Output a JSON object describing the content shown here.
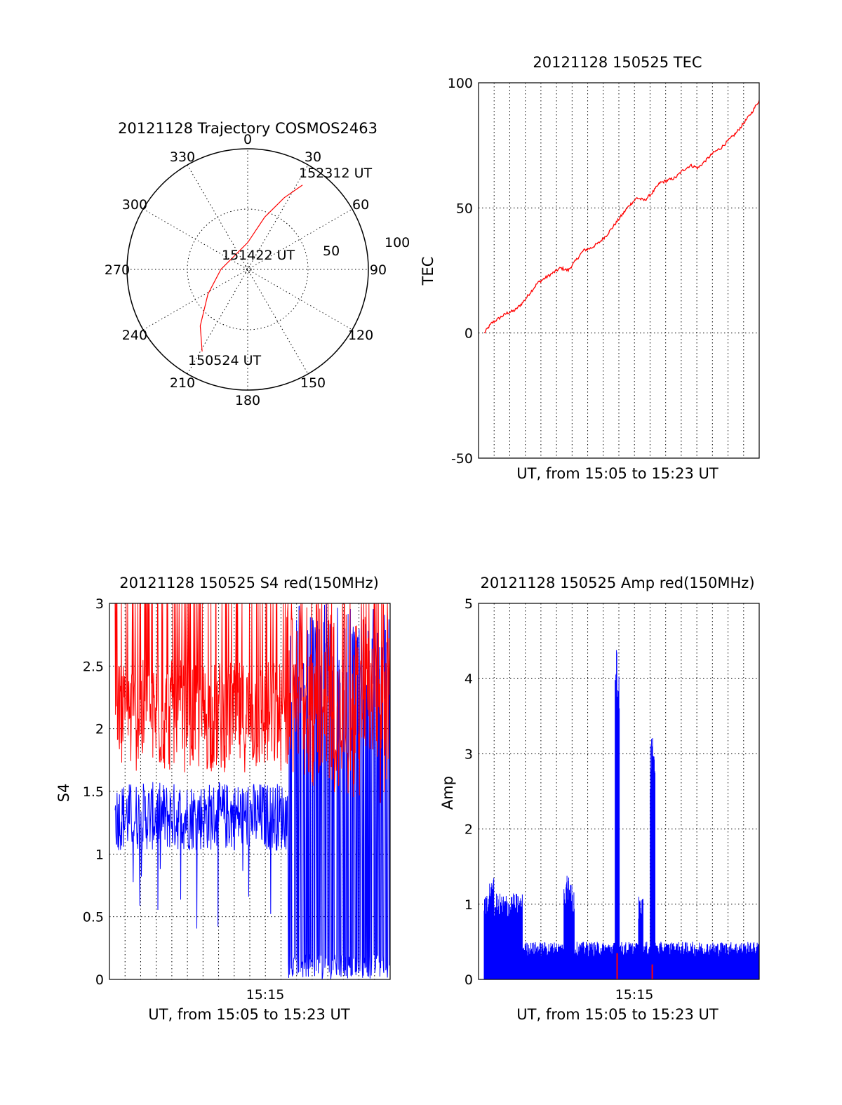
{
  "colors": {
    "red": "#ff0000",
    "blue": "#0000ff",
    "axis": "#000000",
    "background": "#ffffff"
  },
  "chart_data": [
    {
      "type": "polar",
      "title": "20121128 Trajectory COSMOS2463",
      "azimuth_labels": [
        "0",
        "30",
        "60",
        "90",
        "120",
        "150",
        "180",
        "210",
        "240",
        "270",
        "300",
        "330"
      ],
      "ring_labels": [
        "50",
        "100"
      ],
      "series": [
        {
          "color": "red",
          "points": [
            {
              "az": 209,
              "zenith": 70
            },
            {
              "az": 220,
              "zenith": 55
            },
            {
              "az": 238,
              "zenith": 35
            },
            {
              "az": 270,
              "zenith": 20
            },
            {
              "az": 0,
              "zenith": 20
            },
            {
              "az": 18,
              "zenith": 41
            },
            {
              "az": 27,
              "zenith": 60
            },
            {
              "az": 33,
              "zenith": 75
            }
          ]
        }
      ],
      "annotations": [
        {
          "text": "152312 UT",
          "az": 33,
          "zenith": 75
        },
        {
          "text": "151422 UT",
          "az": 0,
          "zenith": 0
        },
        {
          "text": "150524 UT",
          "az": 209,
          "zenith": 70
        }
      ]
    },
    {
      "type": "line",
      "title": "20121128 150525 TEC",
      "xlabel": "UT, from 15:05 to 15:23 UT",
      "ylabel": "TEC",
      "ylim": [
        -50,
        100
      ],
      "xlim_minutes": [
        0,
        18
      ],
      "y_ticks": [
        "-50",
        "0",
        "50",
        "100"
      ],
      "grid": true,
      "series": [
        {
          "color": "red",
          "x_minutes": [
            0,
            0.5,
            1,
            1.5,
            2,
            2.5,
            3,
            3.5,
            4,
            4.5,
            5,
            5.5,
            6,
            6.5,
            7,
            7.5,
            8,
            8.5,
            9,
            9.5,
            10,
            10.5,
            11,
            11.5,
            12,
            12.5,
            13,
            13.5,
            14,
            14.5,
            15,
            15.5,
            16,
            16.5,
            17,
            17.5,
            18
          ],
          "y": [
            0,
            4,
            6,
            8,
            9,
            12,
            16,
            20,
            22,
            24,
            26,
            25,
            29,
            33,
            34,
            36,
            39,
            43,
            47,
            51,
            54,
            53,
            56,
            60,
            61,
            62,
            65,
            67,
            66,
            69,
            72,
            74,
            77,
            80,
            84,
            88,
            93
          ]
        }
      ]
    },
    {
      "type": "line",
      "title": "20121128 150525 S4 red(150MHz)",
      "xlabel": "UT, from 15:05 to 15:23 UT",
      "ylabel": "S4",
      "ylim": [
        0,
        3
      ],
      "xlim_minutes": [
        0,
        18
      ],
      "x_ticks": [
        {
          "label": "15:15",
          "minutes": 10
        }
      ],
      "y_ticks": [
        "0",
        "0.5",
        "1",
        "1.5",
        "2",
        "2.5",
        "3"
      ],
      "grid": true,
      "series": [
        {
          "color": "red",
          "approx_level": 2.1,
          "range": [
            1.3,
            3.0
          ]
        },
        {
          "color": "blue",
          "approx_level": 1.3,
          "range": [
            0.3,
            3.0
          ]
        }
      ]
    },
    {
      "type": "line",
      "title": "20121128 150525 Amp red(150MHz)",
      "xlabel": "UT, from 15:05 to 15:23 UT",
      "ylabel": "Amp",
      "ylim": [
        0,
        5
      ],
      "xlim_minutes": [
        0,
        18
      ],
      "x_ticks": [
        {
          "label": "15:15",
          "minutes": 10
        }
      ],
      "y_ticks": [
        "0",
        "1",
        "2",
        "3",
        "4",
        "5"
      ],
      "grid": true,
      "series": [
        {
          "color": "blue",
          "peaks": [
            {
              "minutes": 8.7,
              "value": 4.45
            },
            {
              "minutes": 11.0,
              "value": 3.25
            },
            {
              "minutes": 5.5,
              "value": 1.4
            },
            {
              "minutes": 0.5,
              "value": 1.35
            }
          ]
        },
        {
          "color": "red",
          "spikes": [
            {
              "minutes": 8.7,
              "value": 0.35
            },
            {
              "minutes": 11.0,
              "value": 0.2
            }
          ]
        }
      ]
    }
  ]
}
